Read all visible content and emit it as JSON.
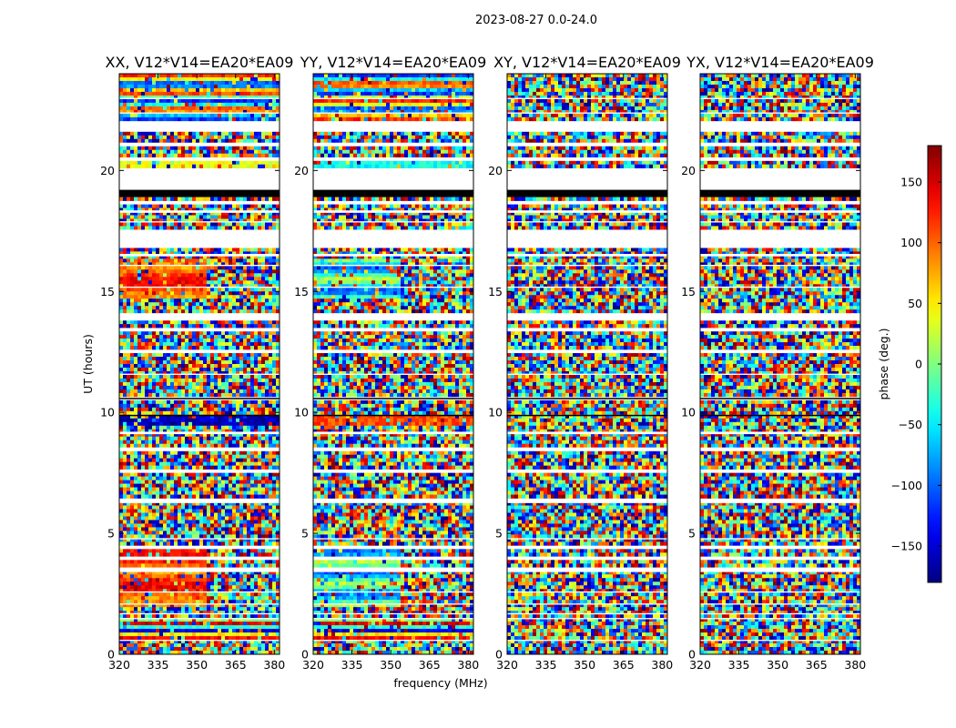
{
  "chart_data": {
    "type": "heatmap",
    "title": "2023-08-27 0.0-24.0",
    "xlabel": "frequency (MHz)",
    "ylabel": "UT (hours)",
    "xlim": [
      320,
      382
    ],
    "ylim": [
      0,
      24
    ],
    "x_ticks": [
      320,
      335,
      350,
      365,
      380
    ],
    "y_ticks": [
      0,
      5,
      10,
      15,
      20
    ],
    "panels": [
      {
        "title": "XX, V12*V14=EA20*EA09",
        "coherent": true
      },
      {
        "title": "YY, V12*V14=EA20*EA09",
        "coherent": true
      },
      {
        "title": "XY, V12*V14=EA20*EA09",
        "coherent": false
      },
      {
        "title": "YX, V12*V14=EA20*EA09",
        "coherent": false
      }
    ],
    "colorbar": {
      "label": "phase (deg.)",
      "range": [
        -180,
        180
      ],
      "ticks": [
        -150,
        -100,
        -50,
        0,
        50,
        100,
        150
      ],
      "tick_labels": [
        "−150",
        "−100",
        "−50",
        "0",
        "50",
        "100",
        "150"
      ]
    },
    "flagged_white_ut": [
      [
        0.55,
        0.6
      ],
      [
        1.45,
        1.5
      ],
      [
        1.65,
        1.7
      ],
      [
        2.05,
        2.1
      ],
      [
        2.55,
        2.6
      ],
      [
        3.4,
        3.55
      ],
      [
        3.95,
        4.0
      ],
      [
        4.4,
        4.45
      ],
      [
        4.75,
        4.8
      ],
      [
        6.25,
        6.4
      ],
      [
        7.55,
        7.6
      ],
      [
        8.4,
        8.55
      ],
      [
        9.1,
        9.2
      ],
      [
        11.55,
        11.6
      ],
      [
        12.5,
        12.55
      ],
      [
        13.35,
        13.45
      ],
      [
        13.8,
        14.1
      ],
      [
        15.15,
        15.2
      ],
      [
        16.05,
        16.1
      ],
      [
        16.45,
        16.55
      ],
      [
        16.8,
        17.55
      ],
      [
        17.85,
        17.9
      ],
      [
        18.25,
        18.35
      ],
      [
        18.6,
        18.7
      ],
      [
        19.25,
        20.05
      ],
      [
        20.4,
        20.5
      ],
      [
        21.05,
        21.15
      ],
      [
        21.65,
        22.0
      ],
      [
        22.35,
        22.4
      ],
      [
        22.95,
        23.0
      ]
    ],
    "flagged_black_ut": [
      [
        18.9,
        19.2
      ],
      [
        10.55,
        10.6
      ],
      [
        9.85,
        9.9
      ]
    ]
  }
}
